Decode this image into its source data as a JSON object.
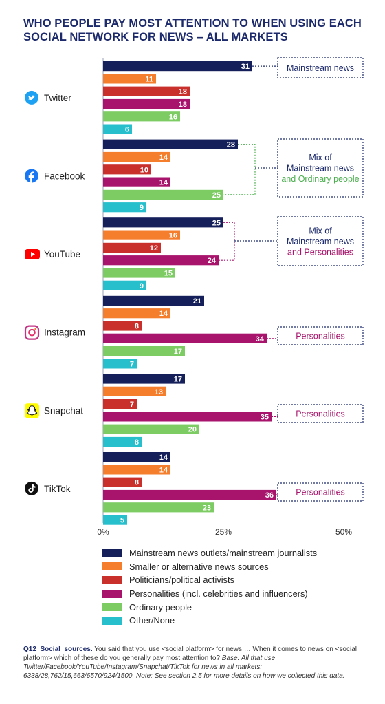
{
  "title_line1": "WHO PEOPLE PAY MOST ATTENTION TO WHEN USING EACH",
  "title_line2": "SOCIAL NETWORK FOR NEWS – ALL MARKETS",
  "colors": {
    "mainstream": "#15205b",
    "smaller": "#f57e2d",
    "politicians": "#c9302c",
    "personalities": "#a8146c",
    "ordinary": "#7ccc63",
    "other": "#28bfcd",
    "callout_default": "#1c2a6b",
    "callout_green": "#4caf4f",
    "callout_magenta": "#a8146c"
  },
  "chart_data": {
    "type": "bar",
    "orientation": "horizontal",
    "categories": [
      "Twitter",
      "Facebook",
      "YouTube",
      "Instagram",
      "Snapchat",
      "TikTok"
    ],
    "series": [
      {
        "name": "Mainstream news outlets/mainstream journalists",
        "values": [
          31,
          28,
          25,
          21,
          17,
          14
        ]
      },
      {
        "name": "Smaller or alternative news sources",
        "values": [
          11,
          14,
          16,
          14,
          13,
          14
        ]
      },
      {
        "name": "Politicians/political activists",
        "values": [
          18,
          10,
          12,
          8,
          7,
          8
        ]
      },
      {
        "name": "Personalities (incl. celebrities and influencers)",
        "values": [
          18,
          14,
          24,
          34,
          35,
          36
        ]
      },
      {
        "name": "Ordinary people",
        "values": [
          16,
          25,
          15,
          17,
          20,
          23
        ]
      },
      {
        "name": "Other/None",
        "values": [
          6,
          9,
          9,
          7,
          8,
          5
        ]
      }
    ],
    "xlim": [
      0,
      50
    ],
    "x_ticks": [
      "0%",
      "25%",
      "50%"
    ],
    "unit": "%",
    "callouts": [
      {
        "platform": "Twitter",
        "lines": [
          {
            "text": "Mainstream news",
            "color": "default"
          }
        ]
      },
      {
        "platform": "Facebook",
        "lines": [
          {
            "text": "Mix of",
            "color": "default"
          },
          {
            "text": "Mainstream news",
            "color": "default"
          },
          {
            "text": "and Ordinary people",
            "color": "green"
          }
        ]
      },
      {
        "platform": "YouTube",
        "lines": [
          {
            "text": "Mix of",
            "color": "default"
          },
          {
            "text": "Mainstream news",
            "color": "default"
          },
          {
            "text": "and Personalities",
            "color": "magenta"
          }
        ]
      },
      {
        "platform": "Instagram",
        "lines": [
          {
            "text": "Personalities",
            "color": "magenta"
          }
        ]
      },
      {
        "platform": "Snapchat",
        "lines": [
          {
            "text": "Personalities",
            "color": "magenta"
          }
        ]
      },
      {
        "platform": "TikTok",
        "lines": [
          {
            "text": "Personalities",
            "color": "magenta"
          }
        ]
      }
    ]
  },
  "icons": [
    "twitter-icon",
    "facebook-icon",
    "youtube-icon",
    "instagram-icon",
    "snapchat-icon",
    "tiktok-icon"
  ],
  "legend": [
    {
      "label": "Mainstream news outlets/mainstream journalists",
      "color": "#15205b"
    },
    {
      "label": "Smaller or alternative news sources",
      "color": "#f57e2d"
    },
    {
      "label": "Politicians/political activists",
      "color": "#c9302c"
    },
    {
      "label": "Personalities (incl. celebrities and influencers)",
      "color": "#a8146c"
    },
    {
      "label": "Ordinary people",
      "color": "#7ccc63"
    },
    {
      "label": "Other/None",
      "color": "#28bfcd"
    }
  ],
  "footnote": {
    "code": "Q12_Social_sources.",
    "question": " You said that you use <social platform> for news … When it comes to news on <social platform> which of these do you generally pay most attention to? ",
    "base": "Base: All that use Twitter/Facebook/YouTube/Instagram/Snapchat/TikTok for news in all markets: 6338/28,762/15,663/6570/924/1500. Note: See section 2.5 for more details on how we collected this data."
  }
}
